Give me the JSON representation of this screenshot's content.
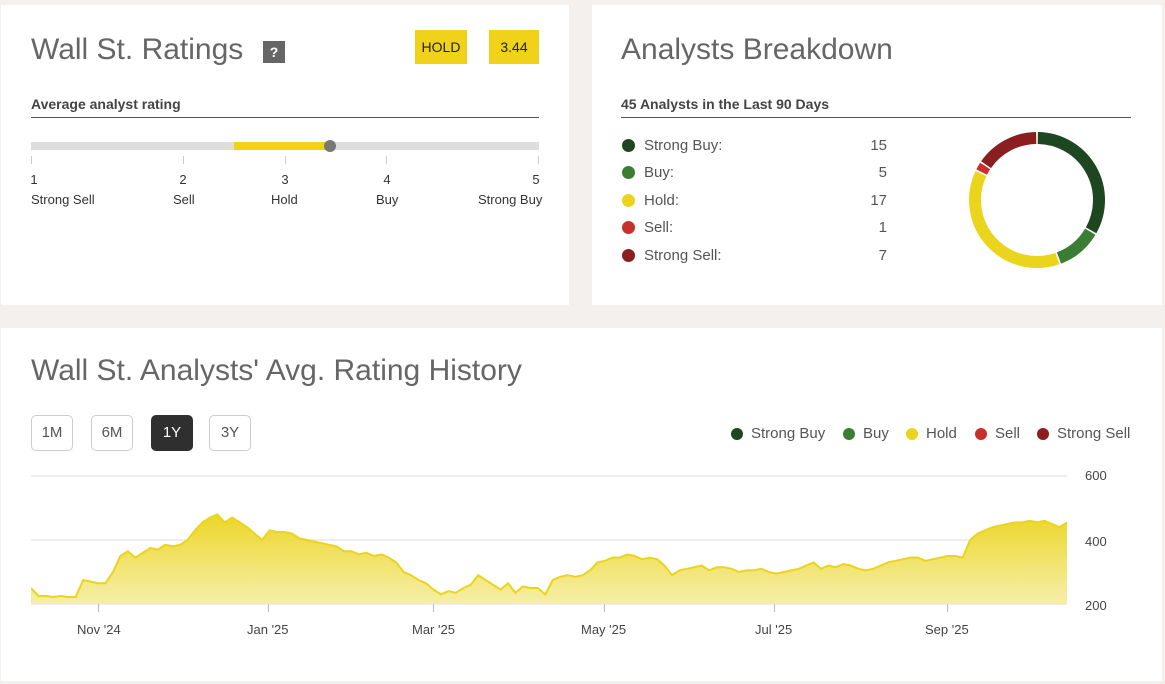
{
  "ratings": {
    "title": "Wall St. Ratings",
    "help": "?",
    "rating_label": "HOLD",
    "rating_score": "3.44",
    "average_label": "Average analyst rating",
    "score_value": 3.44,
    "scale": [
      {
        "num": "1",
        "label": "Strong Sell"
      },
      {
        "num": "2",
        "label": "Sell"
      },
      {
        "num": "3",
        "label": "Hold"
      },
      {
        "num": "4",
        "label": "Buy"
      },
      {
        "num": "5",
        "label": "Strong Buy"
      }
    ]
  },
  "breakdown": {
    "title": "Analysts Breakdown",
    "subtitle": "45 Analysts in the Last 90 Days",
    "items": [
      {
        "label": "Strong Buy:",
        "count": "15",
        "value": 15,
        "color": "#1e4620"
      },
      {
        "label": "Buy:",
        "count": "5",
        "value": 5,
        "color": "#3a7d33"
      },
      {
        "label": "Hold:",
        "count": "17",
        "value": 17,
        "color": "#ebd41c"
      },
      {
        "label": "Sell:",
        "count": "1",
        "value": 1,
        "color": "#c9302c"
      },
      {
        "label": "Strong Sell:",
        "count": "7",
        "value": 7,
        "color": "#8b1f1f"
      }
    ]
  },
  "history": {
    "title": "Wall St. Analysts' Avg. Rating History",
    "ranges": [
      "1M",
      "6M",
      "1Y",
      "3Y"
    ],
    "active_range": "1Y",
    "legend": [
      {
        "label": "Strong Buy",
        "color": "#1e4620"
      },
      {
        "label": "Buy",
        "color": "#3a7d33"
      },
      {
        "label": "Hold",
        "color": "#ebd41c"
      },
      {
        "label": "Sell",
        "color": "#c9302c"
      },
      {
        "label": "Strong Sell",
        "color": "#8b1f1f"
      }
    ]
  },
  "chart_data": {
    "type": "area",
    "title": "Wall St. Analysts' Avg. Rating History",
    "series_name": "Hold",
    "color": "#ebd41c",
    "ylim": [
      200,
      600
    ],
    "yticks": [
      "600",
      "400",
      "200"
    ],
    "xticks": [
      "Nov '24",
      "Jan '25",
      "Mar '25",
      "May '25",
      "Jul '25",
      "Sep '25"
    ],
    "values": [
      250,
      225,
      225,
      222,
      225,
      222,
      222,
      275,
      270,
      265,
      265,
      300,
      350,
      365,
      345,
      360,
      375,
      370,
      385,
      380,
      385,
      400,
      430,
      455,
      470,
      480,
      455,
      470,
      455,
      440,
      420,
      400,
      430,
      425,
      425,
      420,
      405,
      400,
      395,
      390,
      385,
      380,
      365,
      365,
      355,
      360,
      350,
      355,
      345,
      330,
      300,
      290,
      275,
      265,
      245,
      230,
      240,
      235,
      250,
      260,
      290,
      275,
      260,
      245,
      265,
      235,
      255,
      250,
      250,
      230,
      275,
      285,
      290,
      285,
      290,
      305,
      330,
      335,
      345,
      345,
      355,
      350,
      340,
      345,
      340,
      320,
      290,
      305,
      310,
      315,
      320,
      305,
      315,
      315,
      310,
      300,
      305,
      305,
      310,
      300,
      295,
      300,
      305,
      310,
      320,
      330,
      310,
      320,
      315,
      325,
      320,
      310,
      305,
      310,
      320,
      330,
      335,
      340,
      345,
      345,
      335,
      340,
      345,
      350,
      350,
      345,
      400,
      420,
      430,
      440,
      445,
      450,
      455,
      455,
      460,
      455,
      460,
      450,
      440,
      455
    ]
  }
}
